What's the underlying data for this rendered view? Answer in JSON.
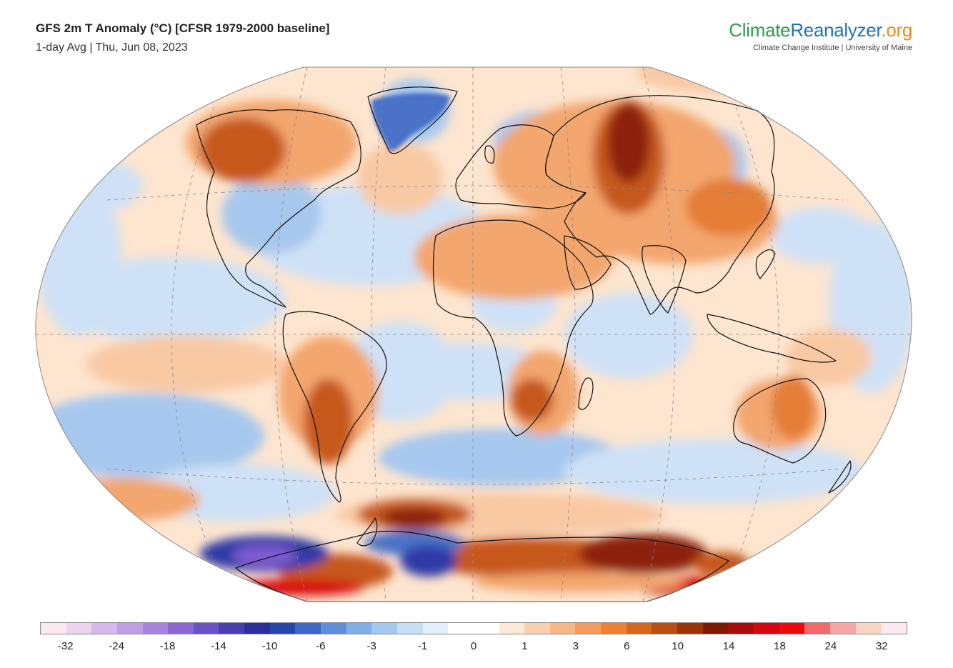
{
  "header": {
    "title": "GFS 2m T Anomaly (°C) [CFSR 1979-2000 baseline]",
    "subtitle": "1-day Avg | Thu, Jun 08, 2023"
  },
  "logo": {
    "part1": "Climate",
    "part2": "Reanalyzer",
    "part3": ".org",
    "tagline": "Climate Change Institute | University of Maine",
    "colors": {
      "part1": "#2e9c4c",
      "part2": "#1f74b8",
      "part3": "#f08a1c"
    }
  },
  "legend": {
    "colors": [
      "#fbe9ef",
      "#ecd3ee",
      "#d6b8ec",
      "#c09ee6",
      "#a883df",
      "#8d68d4",
      "#6a52c4",
      "#4b3fb0",
      "#2c2f9a",
      "#2746aa",
      "#3e66c4",
      "#5e8fd8",
      "#80b0e6",
      "#a2caf0",
      "#c5dff6",
      "#e4effa",
      "#ffffff",
      "#ffffff",
      "#fde9d6",
      "#fbd0ae",
      "#f8b784",
      "#f49c5c",
      "#ee8232",
      "#d8661c",
      "#b84e12",
      "#9a3508",
      "#7f1a02",
      "#a80d0d",
      "#d4080e",
      "#ee0a0a",
      "#f06a6a",
      "#f6a6a6",
      "#f9d4c0",
      "#fbe9ef"
    ],
    "ticks": [
      "-32",
      "-24",
      "-18",
      "-14",
      "-10",
      "-6",
      "-3",
      "-1",
      "0",
      "1",
      "3",
      "6",
      "10",
      "14",
      "18",
      "24",
      "32"
    ]
  },
  "map": {
    "projection": "Winkel tripel",
    "colors": {
      "warm1": "#f9c9a4",
      "warm2": "#f3a66e",
      "warm3": "#e47d35",
      "hot1": "#c6581c",
      "hot2": "#8c240a",
      "hot3": "#d8100f",
      "cool1": "#cfe1f6",
      "cool2": "#a7c8ee",
      "cold1": "#4a72c8",
      "cold2": "#2d3aa6",
      "purple": "#7d5cd2",
      "land_outline": "#111111",
      "graticule": "#8a8a8a"
    }
  }
}
